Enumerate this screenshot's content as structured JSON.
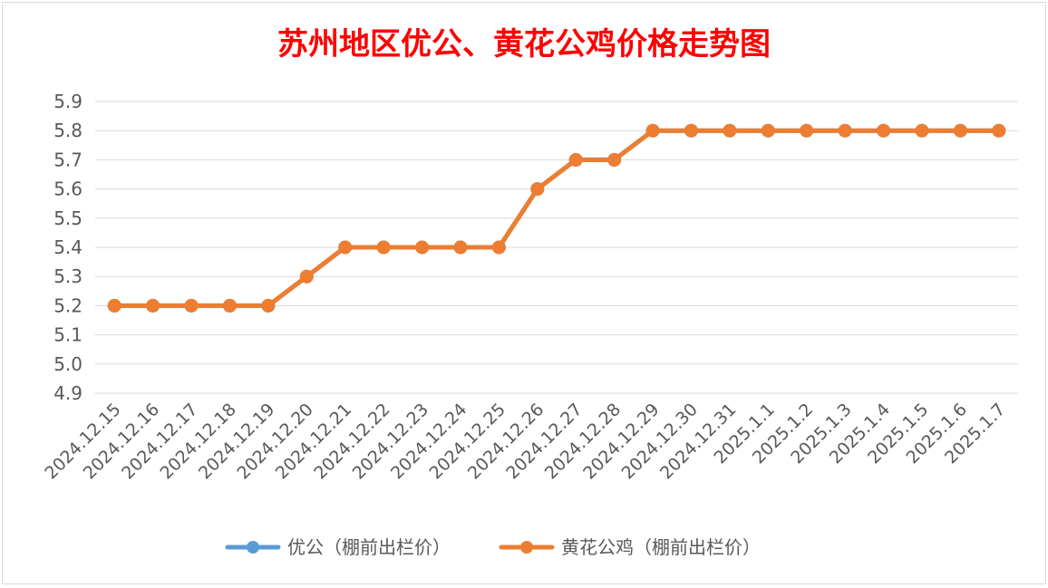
{
  "chart_data": {
    "type": "line",
    "title": "苏州地区优公、黄花公鸡价格走势图",
    "xlabel": "",
    "ylabel": "",
    "ylim": [
      4.9,
      5.9
    ],
    "yticks": [
      "5.9",
      "5.8",
      "5.7",
      "5.6",
      "5.5",
      "5.4",
      "5.3",
      "5.2",
      "5.1",
      "5.0",
      "4.9"
    ],
    "grid": true,
    "legend_position": "bottom",
    "categories": [
      "2024.12.15",
      "2024.12.16",
      "2024.12.17",
      "2024.12.18",
      "2024.12.19",
      "2024.12.20",
      "2024.12.21",
      "2024.12.22",
      "2024.12.23",
      "2024.12.24",
      "2024.12.25",
      "2024.12.26",
      "2024.12.27",
      "2024.12.28",
      "2024.12.29",
      "2024.12.30",
      "2024.12.31",
      "2025.1.1",
      "2025.1.2",
      "2025.1.3",
      "2025.1.4",
      "2025.1.5",
      "2025.1.6",
      "2025.1.7"
    ],
    "series": [
      {
        "name": "优公（棚前出栏价）",
        "color": "#5b9bd5",
        "values": [
          5.2,
          5.2,
          5.2,
          5.2,
          5.2,
          5.3,
          5.4,
          5.4,
          5.4,
          5.4,
          5.4,
          5.6,
          5.7,
          5.7,
          5.8,
          5.8,
          5.8,
          5.8,
          5.8,
          5.8,
          5.8,
          5.8,
          5.8,
          5.8
        ]
      },
      {
        "name": "黄花公鸡（棚前出栏价）",
        "color": "#ed7d31",
        "values": [
          5.2,
          5.2,
          5.2,
          5.2,
          5.2,
          5.3,
          5.4,
          5.4,
          5.4,
          5.4,
          5.4,
          5.6,
          5.7,
          5.7,
          5.8,
          5.8,
          5.8,
          5.8,
          5.8,
          5.8,
          5.8,
          5.8,
          5.8,
          5.8
        ]
      }
    ]
  }
}
